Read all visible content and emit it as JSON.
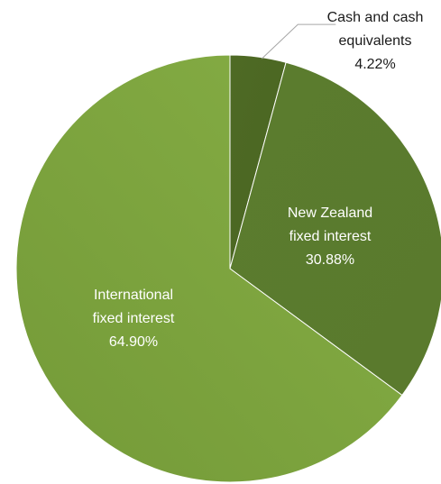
{
  "chart_data": {
    "type": "pie",
    "title": "",
    "slices": [
      {
        "label": "Cash and cash equivalents",
        "value": 4.22,
        "value_label": "4.22%",
        "color": "#4f6b24",
        "label_lines": [
          "Cash and cash",
          "equivalents"
        ],
        "label_position": "outside-top-right"
      },
      {
        "label": "New Zealand fixed interest",
        "value": 30.88,
        "value_label": "30.88%",
        "color": "#5f8030",
        "label_lines": [
          "New Zealand",
          "fixed interest"
        ],
        "label_position": "inside"
      },
      {
        "label": "International fixed interest",
        "value": 64.9,
        "value_label": "64.90%",
        "color": "#7ba33c",
        "label_lines": [
          "International",
          "fixed interest"
        ],
        "label_position": "inside"
      }
    ],
    "start_angle": "12 o'clock",
    "direction": "clockwise",
    "legend": "none"
  }
}
